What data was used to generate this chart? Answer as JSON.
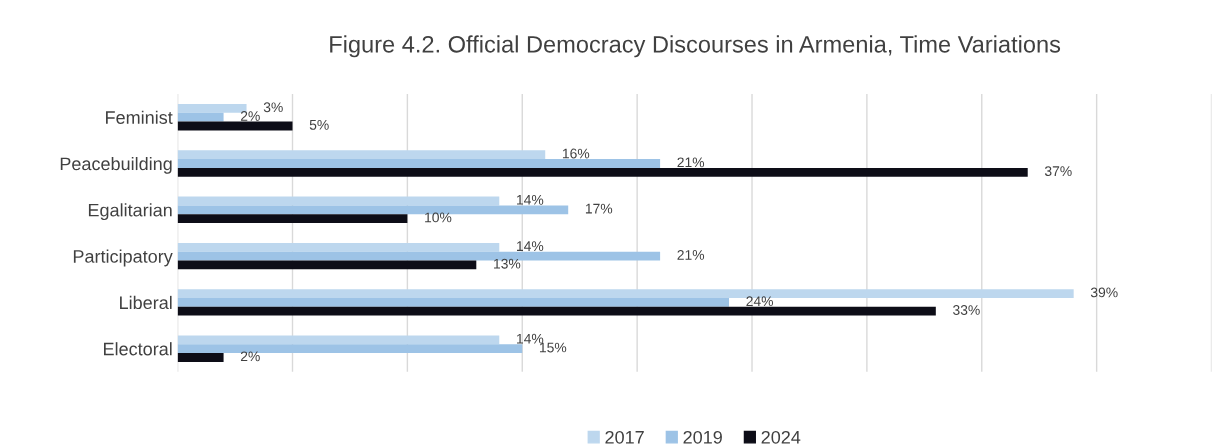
{
  "chart_data": {
    "type": "bar",
    "orientation": "horizontal",
    "title": "Figure 4.2. Official Democracy Discourses in Armenia, Time Variations",
    "categories": [
      "Feminist",
      "Peacebuilding",
      "Egalitarian",
      "Participatory",
      "Liberal",
      "Electoral"
    ],
    "series": [
      {
        "name": "2017",
        "color": "#bdd7ee",
        "values": [
          3,
          16,
          14,
          14,
          39,
          14
        ],
        "value_labels": [
          "3%",
          "16%",
          "14%",
          "14%",
          "39%",
          "14%"
        ]
      },
      {
        "name": "2019",
        "color": "#9dc3e6",
        "values": [
          2,
          21,
          17,
          21,
          24,
          15
        ],
        "value_labels": [
          "2%",
          "21%",
          "17%",
          "21%",
          "24%",
          "15%"
        ]
      },
      {
        "name": "2024",
        "color": "#0d0d17",
        "values": [
          5,
          37,
          10,
          13,
          33,
          2
        ],
        "value_labels": [
          "5%",
          "37%",
          "10%",
          "13%",
          "33%",
          "2%"
        ]
      }
    ],
    "xlim": [
      0,
      45
    ],
    "xticks": [
      {
        "value": 0,
        "label": null
      },
      {
        "value": 5,
        "label": null
      },
      {
        "value": 10,
        "label": null
      },
      {
        "value": 15,
        "label": null
      },
      {
        "value": 20,
        "label": null
      },
      {
        "value": 25,
        "label": null
      },
      {
        "value": 30,
        "label": null
      },
      {
        "value": 35,
        "label": null
      },
      {
        "value": 40,
        "label": null
      },
      {
        "value": 45,
        "label": null
      }
    ],
    "tick_labels": "y",
    "grid": "x",
    "legend": "bottom"
  }
}
